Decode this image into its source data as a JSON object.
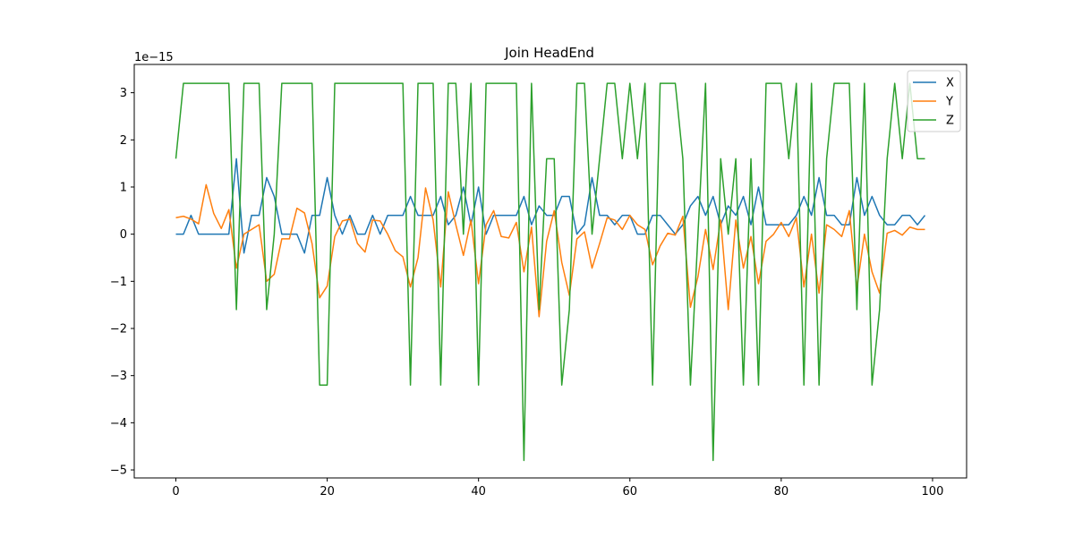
{
  "chart_data": {
    "type": "line",
    "title": "Join HeadEnd",
    "y_offset_label": "1e−15",
    "xlim": [
      -5.5,
      104.5
    ],
    "ylim": [
      -5.17,
      3.6
    ],
    "x_ticks": [
      0,
      20,
      40,
      60,
      80,
      100
    ],
    "x_tick_labels": [
      "0",
      "20",
      "40",
      "60",
      "80",
      "100"
    ],
    "y_ticks": [
      -5,
      -4,
      -3,
      -2,
      -1,
      0,
      1,
      2,
      3
    ],
    "y_tick_labels": [
      "−5",
      "−4",
      "−3",
      "−2",
      "−1",
      "0",
      "1",
      "2",
      "3"
    ],
    "legend_position": "top-right",
    "grid": false,
    "series": [
      {
        "name": "X",
        "color": "#1f77b4",
        "values": [
          0,
          0,
          0.4,
          0,
          0,
          0,
          0,
          0,
          1.6,
          -0.4,
          0.4,
          0.4,
          1.2,
          0.8,
          0,
          0,
          0,
          -0.4,
          0.4,
          0.4,
          1.2,
          0.4,
          0,
          0.4,
          0,
          0,
          0.4,
          0,
          0.4,
          0.4,
          0.4,
          0.8,
          0.4,
          0.4,
          0.4,
          0.8,
          0.2,
          0.4,
          1.0,
          0.2,
          1.0,
          0,
          0.4,
          0.4,
          0.4,
          0.4,
          0.8,
          0.2,
          0.6,
          0.4,
          0.4,
          0.8,
          0.8,
          0,
          0.2,
          1.2,
          0.4,
          0.4,
          0.2,
          0.4,
          0.4,
          0,
          0,
          0.4,
          0.4,
          0.2,
          0,
          0.2,
          0.6,
          0.8,
          0.4,
          0.8,
          0.2,
          0.6,
          0.4,
          0.8,
          0.2,
          1.0,
          0.2,
          0.2,
          0.2,
          0.2,
          0.4,
          0.8,
          0.4,
          1.2,
          0.4,
          0.4,
          0.2,
          0.2,
          1.2,
          0.4,
          0.8,
          0.4,
          0.2,
          0.2,
          0.4,
          0.4,
          0.2,
          0.4
        ]
      },
      {
        "name": "Y",
        "color": "#ff7f0e",
        "values": [
          0.35,
          0.38,
          0.32,
          0.22,
          1.05,
          0.44,
          0.12,
          0.52,
          -0.72,
          0,
          0.1,
          0.2,
          -1.0,
          -0.85,
          -0.1,
          -0.1,
          0.55,
          0.45,
          -0.2,
          -1.35,
          -1.1,
          -0.05,
          0.28,
          0.32,
          -0.2,
          -0.38,
          0.3,
          0.28,
          0,
          -0.35,
          -0.48,
          -1.12,
          -0.5,
          0.98,
          0.3,
          -1.12,
          0.9,
          0.2,
          -0.45,
          0.3,
          -1.05,
          0.2,
          0.5,
          -0.05,
          -0.08,
          0.25,
          -0.8,
          0.15,
          -1.75,
          -0.15,
          0.5,
          -0.6,
          -1.3,
          -0.1,
          0.05,
          -0.72,
          -0.2,
          0.35,
          0.3,
          0.1,
          0.4,
          0.2,
          0.1,
          -0.65,
          -0.25,
          0.02,
          -0.02,
          0.38,
          -1.55,
          -0.9,
          0.1,
          -0.75,
          0.3,
          -1.6,
          0.3,
          -0.72,
          -0.05,
          -1.05,
          -0.15,
          0,
          0.25,
          -0.05,
          0.35,
          -1.12,
          0,
          -1.25,
          0.2,
          0.1,
          -0.05,
          0.5,
          -1.15,
          0,
          -0.8,
          -1.25,
          0.02,
          0.08,
          -0.02,
          0.15,
          0.1,
          0.1
        ]
      },
      {
        "name": "Z",
        "color": "#2ca02c",
        "values": [
          1.6,
          3.2,
          3.2,
          3.2,
          3.2,
          3.2,
          3.2,
          3.2,
          -1.6,
          3.2,
          3.2,
          3.2,
          -1.6,
          0,
          3.2,
          3.2,
          3.2,
          3.2,
          3.2,
          -3.2,
          -3.2,
          3.2,
          3.2,
          3.2,
          3.2,
          3.2,
          3.2,
          3.2,
          3.2,
          3.2,
          3.2,
          -3.2,
          3.2,
          3.2,
          3.2,
          -3.2,
          3.2,
          3.2,
          0,
          3.2,
          -3.2,
          3.2,
          3.2,
          3.2,
          3.2,
          3.2,
          -4.8,
          3.2,
          -1.6,
          1.6,
          1.6,
          -3.2,
          -1.6,
          3.2,
          3.2,
          0,
          1.6,
          3.2,
          3.2,
          1.6,
          3.2,
          1.6,
          3.2,
          -3.2,
          3.2,
          3.2,
          3.2,
          1.6,
          -3.2,
          0,
          3.2,
          -4.8,
          1.6,
          0,
          1.6,
          -3.2,
          1.6,
          -3.2,
          3.2,
          3.2,
          3.2,
          1.6,
          3.2,
          -3.2,
          3.2,
          -3.2,
          1.6,
          3.2,
          3.2,
          3.2,
          -1.6,
          3.2,
          -3.2,
          -1.6,
          1.6,
          3.2,
          1.6,
          3.2,
          1.6,
          1.6
        ]
      }
    ]
  }
}
